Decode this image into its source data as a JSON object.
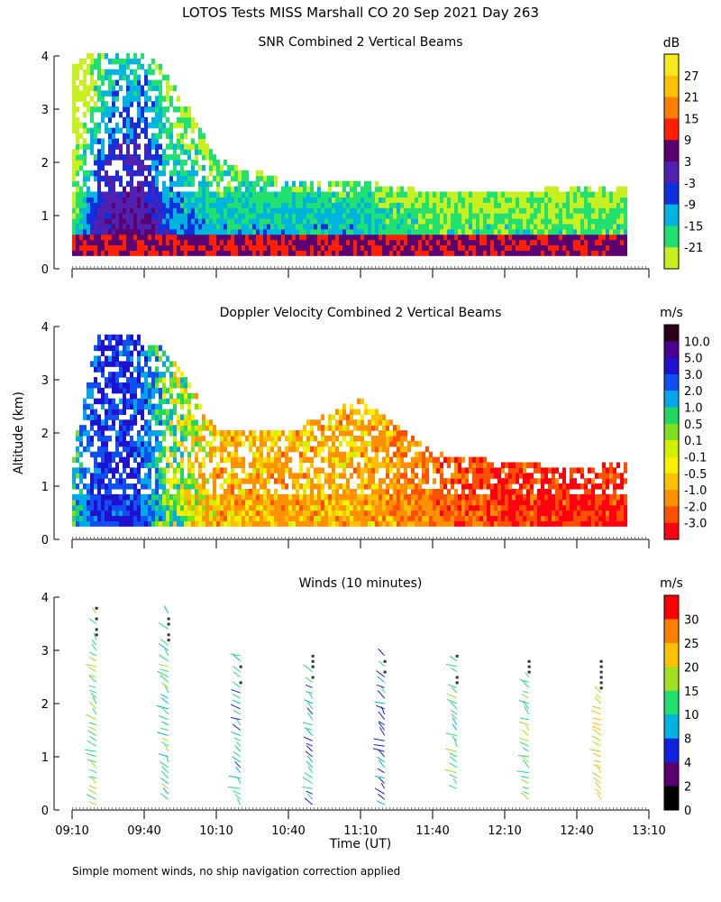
{
  "title": "LOTOS Tests MISS Marshall CO  20 Sep 2021 Day 263",
  "ylabel": "Altitude (km)",
  "xlabel": "Time (UT)",
  "footnote": "Simple moment winds, no ship navigation correction applied",
  "chart_data": [
    {
      "type": "heatmap",
      "title": "SNR Combined 2 Vertical Beams",
      "units": "dB",
      "ylim": [
        0,
        4
      ],
      "yticks": [
        "0",
        "1",
        "2",
        "3",
        "4"
      ],
      "xlim": [
        "09:10",
        "13:10"
      ],
      "colorbar_ticks": [
        "27",
        "21",
        "15",
        "9",
        "3",
        "-3",
        "-9",
        "-15",
        "-21"
      ],
      "colorbar_colors": [
        "#f7e91e",
        "#ffc000",
        "#ff8000",
        "#ff2000",
        "#5a0070",
        "#5020b0",
        "#1030e0",
        "#00b4e0",
        "#20e070",
        "#c8f020"
      ],
      "profile": [
        {
          "time": "09:10",
          "top_km": 4.0,
          "dominant_dB": -15
        },
        {
          "time": "09:20",
          "top_km": 4.0,
          "dominant_dB": 3
        },
        {
          "time": "09:30",
          "top_km": 4.0,
          "dominant_dB": 9
        },
        {
          "time": "09:40",
          "top_km": 4.0,
          "dominant_dB": 9
        },
        {
          "time": "09:50",
          "top_km": 3.6,
          "dominant_dB": -3
        },
        {
          "time": "10:10",
          "top_km": 2.0,
          "dominant_dB": -9
        },
        {
          "time": "10:40",
          "top_km": 1.6,
          "dominant_dB": -9
        },
        {
          "time": "11:10",
          "top_km": 1.6,
          "dominant_dB": -9
        },
        {
          "time": "11:40",
          "top_km": 1.4,
          "dominant_dB": -15
        },
        {
          "time": "12:10",
          "top_km": 1.4,
          "dominant_dB": -15
        },
        {
          "time": "12:40",
          "top_km": 1.5,
          "dominant_dB": -15
        },
        {
          "time": "13:00",
          "top_km": 1.5,
          "dominant_dB": -15
        }
      ]
    },
    {
      "type": "heatmap",
      "title": "Doppler Velocity Combined 2 Vertical Beams",
      "units": "m/s",
      "ylim": [
        0,
        4
      ],
      "yticks": [
        "0",
        "1",
        "2",
        "3",
        "4"
      ],
      "xlim": [
        "09:10",
        "13:10"
      ],
      "colorbar_ticks": [
        "10.0",
        "5.0",
        "3.0",
        "2.0",
        "1.0",
        "0.5",
        "0.1",
        "-0.1",
        "-0.5",
        "-1.0",
        "-2.0",
        "-3.0"
      ],
      "colorbar_colors": [
        "#2a001a",
        "#4a0090",
        "#2010d0",
        "#1050f0",
        "#00a8e8",
        "#20d860",
        "#80e020",
        "#d0f000",
        "#f8f000",
        "#ffc000",
        "#ff9000",
        "#ff5000",
        "#ff0010"
      ],
      "profile": [
        {
          "time": "09:10",
          "top_km": 1.5,
          "dominant_ms": 1.0
        },
        {
          "time": "09:20",
          "top_km": 3.8,
          "dominant_ms": 3.0
        },
        {
          "time": "09:35",
          "top_km": 3.8,
          "dominant_ms": 3.0
        },
        {
          "time": "09:50",
          "top_km": 3.5,
          "dominant_ms": 0.5
        },
        {
          "time": "10:10",
          "top_km": 2.0,
          "dominant_ms": -1.0
        },
        {
          "time": "10:40",
          "top_km": 2.0,
          "dominant_ms": -1.0
        },
        {
          "time": "11:10",
          "top_km": 2.6,
          "dominant_ms": -1.0
        },
        {
          "time": "11:40",
          "top_km": 1.6,
          "dominant_ms": -2.0
        },
        {
          "time": "12:10",
          "top_km": 1.4,
          "dominant_ms": -3.0
        },
        {
          "time": "12:40",
          "top_km": 1.3,
          "dominant_ms": -3.0
        },
        {
          "time": "13:00",
          "top_km": 1.4,
          "dominant_ms": -3.0
        }
      ]
    },
    {
      "type": "scatter",
      "title": "Winds (10 minutes)",
      "units": "m/s",
      "ylim": [
        0,
        4
      ],
      "yticks": [
        "0",
        "1",
        "2",
        "3",
        "4"
      ],
      "xticks": [
        "09:10",
        "09:40",
        "10:10",
        "10:40",
        "11:10",
        "11:40",
        "12:10",
        "12:40",
        "13:10"
      ],
      "colorbar_ticks": [
        "30",
        "25",
        "20",
        "15",
        "10",
        "8",
        "4",
        "2",
        "0"
      ],
      "colorbar_colors": [
        "#ff0000",
        "#ff8000",
        "#ffc000",
        "#a0e020",
        "#20e070",
        "#00b4e0",
        "#1020e0",
        "#5a0070",
        "#000000"
      ],
      "profiles": [
        {
          "time": "09:20",
          "bottom_km": 0.1,
          "top_km": 3.9,
          "speed_ms": 15
        },
        {
          "time": "09:50",
          "bottom_km": 0.2,
          "top_km": 3.8,
          "speed_ms": 12
        },
        {
          "time": "10:20",
          "bottom_km": 0.1,
          "top_km": 3.0,
          "speed_ms": 10
        },
        {
          "time": "10:50",
          "bottom_km": 0.1,
          "top_km": 3.0,
          "speed_ms": 10
        },
        {
          "time": "11:20",
          "bottom_km": 0.1,
          "top_km": 3.0,
          "speed_ms": 8
        },
        {
          "time": "11:50",
          "bottom_km": 0.4,
          "top_km": 3.0,
          "speed_ms": 12
        },
        {
          "time": "12:20",
          "bottom_km": 0.2,
          "top_km": 2.9,
          "speed_ms": 15
        },
        {
          "time": "12:50",
          "bottom_km": 0.2,
          "top_km": 2.9,
          "speed_ms": 20
        }
      ]
    }
  ]
}
